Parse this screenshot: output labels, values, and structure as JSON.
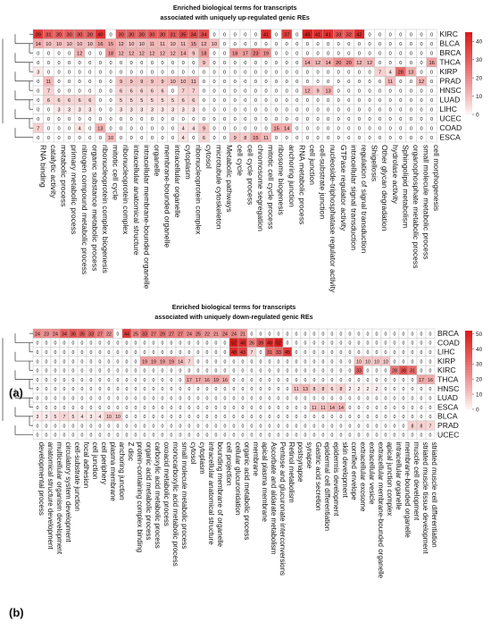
{
  "colors": {
    "high": "#dd1c1c",
    "low": "#ffffff",
    "border": "#b8b8b8",
    "text": "#111111"
  },
  "chart_data": [
    {
      "type": "heatmap",
      "panel_label": "(a)",
      "title": [
        "Enriched biological terms for transcripts",
        "associated with uniquely up-regulated genic REs"
      ],
      "rows": [
        "KIRC",
        "BLCA",
        "BRCA",
        "THCA",
        "KIRP",
        "PRAD",
        "HNSC",
        "LUAD",
        "LIHC",
        "UCEC",
        "COAD",
        "ESCA"
      ],
      "columns": [
        "RNA binding",
        "catalytic activity",
        "metabolic process",
        "primary metabolic process",
        "nitrogen compound metabolic process",
        "organic substance metabolic process",
        "ribonucleoprotein complex biogenesis",
        "mitotic cell cycle",
        "ribonucleoprotein complex",
        "intracellular anatomical structure",
        "intracellular membrane-bounded organelle",
        "organelle",
        "membrane-bounded organelle",
        "intracellular organelle",
        "cytoplasm",
        "ribonucleoprotein complex",
        "cytosol",
        "microtubule cytoskeleton",
        "Metabolic pathways",
        "cell cycle",
        "cell cycle process",
        "chromosome segregation",
        "mitotic cell cycle process",
        "ribosome biogenesis",
        "anchoring junction",
        "RNA metabolic process",
        "cell junction",
        "cell-substrate junction",
        "nucleoside-triphosphatase regulator activity",
        "GTPase regulator activity",
        "intracellular signal transduction",
        "regulation of signal transduction",
        "Shigellosis",
        "Other glycan degradation",
        "hydrolase activity",
        "Sphingolipid metabolism",
        "organophosphate metabolic process",
        "small molecule metabolic process",
        "cell morphogenesis"
      ],
      "values": [
        [
          39,
          31,
          30,
          30,
          30,
          30,
          40,
          0,
          30,
          30,
          30,
          30,
          30,
          31,
          35,
          34,
          34,
          0,
          0,
          0,
          0,
          0,
          41,
          0,
          37,
          0,
          45,
          41,
          41,
          33,
          32,
          42,
          0,
          0,
          0,
          0,
          0,
          0,
          0
        ],
        [
          14,
          10,
          10,
          10,
          10,
          10,
          16,
          15,
          12,
          10,
          10,
          11,
          11,
          10,
          11,
          15,
          12,
          10,
          0,
          0,
          0,
          0,
          0,
          0,
          0,
          0,
          0,
          0,
          0,
          0,
          0,
          0,
          0,
          0,
          0,
          0,
          0,
          0,
          0
        ],
        [
          0,
          0,
          0,
          0,
          12,
          0,
          0,
          18,
          12,
          12,
          12,
          12,
          12,
          12,
          14,
          9,
          18,
          0,
          0,
          18,
          17,
          23,
          19,
          0,
          0,
          0,
          0,
          0,
          0,
          0,
          0,
          0,
          0,
          0,
          0,
          0,
          0,
          0,
          0
        ],
        [
          0,
          0,
          0,
          0,
          0,
          0,
          0,
          0,
          0,
          0,
          0,
          0,
          0,
          0,
          0,
          0,
          9,
          0,
          0,
          0,
          0,
          0,
          0,
          0,
          0,
          0,
          14,
          12,
          14,
          20,
          20,
          12,
          12,
          0,
          0,
          0,
          0,
          0,
          16
        ],
        [
          3,
          0,
          0,
          0,
          0,
          0,
          0,
          0,
          0,
          0,
          0,
          0,
          0,
          0,
          0,
          0,
          0,
          0,
          0,
          0,
          0,
          0,
          0,
          0,
          0,
          0,
          0,
          0,
          0,
          0,
          0,
          0,
          0,
          7,
          4,
          28,
          13,
          0,
          0
        ],
        [
          0,
          11,
          0,
          0,
          0,
          0,
          0,
          0,
          9,
          9,
          9,
          9,
          9,
          10,
          10,
          11,
          0,
          0,
          0,
          0,
          0,
          0,
          0,
          0,
          0,
          0,
          0,
          0,
          0,
          0,
          0,
          0,
          0,
          0,
          11,
          0,
          0,
          12,
          0
        ],
        [
          0,
          7,
          0,
          0,
          0,
          0,
          0,
          0,
          6,
          6,
          6,
          6,
          6,
          0,
          7,
          7,
          0,
          0,
          0,
          0,
          0,
          0,
          0,
          0,
          0,
          0,
          12,
          9,
          13,
          0,
          0,
          0,
          0,
          0,
          0,
          0,
          0,
          0,
          0
        ],
        [
          0,
          6,
          6,
          6,
          6,
          6,
          0,
          0,
          5,
          5,
          5,
          5,
          5,
          5,
          6,
          6,
          0,
          0,
          0,
          0,
          0,
          0,
          0,
          0,
          0,
          0,
          0,
          0,
          0,
          0,
          0,
          0,
          0,
          0,
          0,
          0,
          0,
          0,
          0
        ],
        [
          0,
          0,
          3,
          3,
          3,
          3,
          0,
          0,
          3,
          3,
          3,
          3,
          3,
          3,
          3,
          3,
          0,
          0,
          0,
          0,
          0,
          0,
          0,
          0,
          0,
          0,
          0,
          0,
          0,
          0,
          0,
          0,
          0,
          0,
          0,
          0,
          0,
          0,
          0
        ],
        [
          0,
          0,
          0,
          0,
          0,
          0,
          0,
          0,
          0,
          0,
          0,
          0,
          0,
          0,
          0,
          0,
          0,
          0,
          0,
          0,
          0,
          0,
          0,
          0,
          0,
          0,
          0,
          0,
          0,
          0,
          0,
          0,
          0,
          0,
          0,
          0,
          0,
          0,
          0
        ],
        [
          7,
          0,
          0,
          0,
          4,
          0,
          13,
          0,
          0,
          0,
          0,
          0,
          0,
          0,
          4,
          4,
          9,
          0,
          0,
          0,
          0,
          0,
          0,
          15,
          14,
          0,
          0,
          0,
          0,
          0,
          0,
          0,
          0,
          0,
          0,
          0,
          0,
          0,
          0
        ],
        [
          0,
          0,
          0,
          0,
          0,
          0,
          0,
          10,
          0,
          0,
          0,
          0,
          0,
          0,
          4,
          0,
          6,
          0,
          0,
          9,
          8,
          15,
          11,
          0,
          0,
          0,
          0,
          0,
          0,
          0,
          0,
          0,
          0,
          0,
          0,
          0,
          0,
          0,
          0
        ]
      ],
      "legend_ticks": [
        0,
        10,
        20,
        30,
        40
      ],
      "value_range": [
        0,
        45
      ]
    },
    {
      "type": "heatmap",
      "panel_label": "(b)",
      "title": [
        "Enriched biological terms for transcripts",
        "associated with uniquely down-regulated genic REs"
      ],
      "rows": [
        "BRCA",
        "COAD",
        "LIHC",
        "KIRP",
        "KIRC",
        "THCA",
        "HNSC",
        "LUAD",
        "ESCA",
        "BLCA",
        "PRAD",
        "UCEC"
      ],
      "columns": [
        "developmental process",
        "anatomical structure development",
        "multicellular organism development",
        "circulatory system development",
        "cell-substrate junction",
        "focal adhesion",
        "cell junction",
        "cell periphery",
        "plasma membrane",
        "anchoring junction",
        "Z disc",
        "protein-containing complex binding",
        "organic acid metabolic process",
        "carboxylic acid metabolic process",
        "oxoacid metabolic process",
        "monocarboxylic acid metabolic process",
        "small molecule metabolic process",
        "cytosol",
        "cytoplasm",
        "intracellular anatomical structure",
        "bounding membrane of organelle",
        "cell projection",
        "cellular glucuronidation",
        "organic acid metabolic process",
        "membrane",
        "apical plasma membrane",
        "Ascorbate and aldarate metabolism",
        "Pentose and glucuronate interconversions",
        "Retinol metabolism",
        "postsynapse",
        "synapse",
        "Gastric acid secretion",
        "epidermal cell differentiation",
        "epidermis development",
        "skin development",
        "cornified envelope",
        "extracellular exosome",
        "extracellular vesicle",
        "extracellular membrane-bounded organelle",
        "apical junction complex",
        "intracellular organelle",
        "membrane-bounded organelle",
        "muscle cell development",
        "striated muscle tissue development",
        "striated muscle cell differentiation"
      ],
      "values": [
        [
          24,
          23,
          24,
          34,
          36,
          35,
          33,
          27,
          22,
          0,
          44,
          25,
          33,
          27,
          29,
          27,
          27,
          24,
          25,
          22,
          21,
          24,
          24,
          21,
          0,
          0,
          0,
          0,
          0,
          0,
          0,
          0,
          0,
          0,
          0,
          0,
          0,
          0,
          0,
          0,
          0,
          0,
          0,
          0,
          0
        ],
        [
          0,
          0,
          0,
          0,
          0,
          0,
          0,
          0,
          0,
          0,
          0,
          0,
          0,
          0,
          0,
          0,
          0,
          0,
          0,
          0,
          0,
          0,
          52,
          48,
          26,
          39,
          48,
          52,
          0,
          0,
          0,
          0,
          0,
          0,
          0,
          0,
          0,
          0,
          0,
          0,
          0,
          0,
          0,
          0,
          0
        ],
        [
          0,
          0,
          0,
          0,
          0,
          0,
          0,
          0,
          0,
          0,
          0,
          0,
          0,
          0,
          0,
          0,
          0,
          0,
          0,
          0,
          0,
          0,
          48,
          43,
          7,
          0,
          31,
          33,
          45,
          0,
          0,
          0,
          0,
          0,
          0,
          0,
          0,
          0,
          0,
          0,
          0,
          0,
          0,
          0,
          0
        ],
        [
          0,
          0,
          0,
          0,
          0,
          0,
          0,
          0,
          0,
          0,
          0,
          0,
          19,
          19,
          19,
          19,
          14,
          7,
          0,
          0,
          0,
          0,
          0,
          0,
          0,
          0,
          0,
          0,
          0,
          0,
          0,
          0,
          0,
          0,
          0,
          0,
          10,
          10,
          10,
          10,
          0,
          0,
          0,
          0,
          0
        ],
        [
          0,
          0,
          0,
          0,
          0,
          0,
          0,
          0,
          0,
          0,
          0,
          0,
          0,
          0,
          0,
          0,
          0,
          0,
          0,
          0,
          0,
          0,
          0,
          0,
          0,
          0,
          0,
          0,
          0,
          0,
          0,
          0,
          0,
          0,
          0,
          0,
          33,
          0,
          0,
          0,
          28,
          38,
          31,
          0,
          0
        ],
        [
          0,
          0,
          0,
          0,
          0,
          0,
          0,
          0,
          0,
          0,
          0,
          0,
          0,
          0,
          0,
          0,
          0,
          17,
          17,
          16,
          19,
          16,
          0,
          0,
          0,
          0,
          0,
          0,
          0,
          0,
          0,
          0,
          0,
          0,
          0,
          0,
          0,
          0,
          0,
          0,
          0,
          0,
          0,
          17,
          16
        ],
        [
          0,
          0,
          0,
          0,
          0,
          0,
          0,
          0,
          0,
          0,
          0,
          0,
          0,
          0,
          0,
          0,
          0,
          0,
          0,
          0,
          0,
          0,
          0,
          0,
          0,
          0,
          0,
          0,
          0,
          11,
          13,
          8,
          8,
          6,
          8,
          2,
          2,
          2,
          2,
          0,
          0,
          0,
          0,
          0,
          0
        ],
        [
          0,
          0,
          0,
          0,
          0,
          0,
          0,
          0,
          0,
          0,
          0,
          0,
          0,
          0,
          0,
          0,
          0,
          0,
          0,
          0,
          0,
          0,
          0,
          0,
          0,
          0,
          0,
          0,
          0,
          0,
          0,
          0,
          0,
          0,
          0,
          0,
          0,
          0,
          0,
          0,
          0,
          0,
          0,
          0,
          0
        ],
        [
          0,
          0,
          0,
          0,
          0,
          0,
          0,
          0,
          0,
          0,
          0,
          0,
          0,
          0,
          0,
          0,
          0,
          0,
          0,
          0,
          0,
          0,
          0,
          0,
          0,
          0,
          0,
          0,
          0,
          0,
          0,
          11,
          11,
          14,
          14,
          0,
          0,
          0,
          0,
          0,
          0,
          0,
          0,
          0,
          0
        ],
        [
          3,
          3,
          5,
          7,
          5,
          4,
          3,
          4,
          10,
          10,
          0,
          0,
          0,
          0,
          0,
          0,
          0,
          0,
          0,
          0,
          0,
          0,
          0,
          0,
          0,
          0,
          0,
          0,
          0,
          0,
          0,
          0,
          0,
          0,
          0,
          0,
          0,
          0,
          0,
          0,
          0,
          0,
          0,
          0,
          0
        ],
        [
          0,
          0,
          0,
          0,
          0,
          0,
          0,
          0,
          0,
          0,
          0,
          0,
          0,
          0,
          0,
          0,
          0,
          0,
          0,
          0,
          0,
          0,
          0,
          0,
          0,
          0,
          0,
          0,
          0,
          0,
          0,
          0,
          0,
          0,
          0,
          0,
          0,
          0,
          0,
          0,
          0,
          0,
          8,
          8,
          7
        ],
        [
          0,
          0,
          0,
          0,
          0,
          0,
          0,
          0,
          0,
          0,
          0,
          0,
          0,
          0,
          0,
          0,
          0,
          0,
          0,
          0,
          0,
          0,
          0,
          0,
          0,
          0,
          0,
          0,
          0,
          0,
          0,
          0,
          0,
          0,
          0,
          0,
          0,
          0,
          0,
          0,
          0,
          0,
          0,
          0,
          0
        ]
      ],
      "legend_ticks": [
        0,
        10,
        20,
        30,
        40,
        50
      ],
      "value_range": [
        0,
        52
      ]
    }
  ]
}
